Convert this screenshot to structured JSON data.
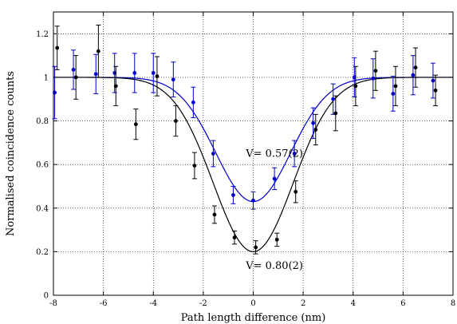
{
  "chart_data": {
    "type": "scatter",
    "title": "",
    "xlabel": "Path length difference (nm)",
    "ylabel": "Normalised coincidence counts",
    "xlim": [
      -8,
      8
    ],
    "ylim": [
      0,
      1.3
    ],
    "xticks": [
      -8,
      -6,
      -4,
      -2,
      0,
      2,
      4,
      6,
      8
    ],
    "yticks": [
      0,
      0.2,
      0.4,
      0.6,
      0.8,
      1,
      1.2
    ],
    "yticklabels": [
      "0",
      "0.2",
      "0.4",
      "0.6",
      "0.8",
      "1",
      "1.2"
    ],
    "grid": true,
    "series": [
      {
        "color": "#0000cc",
        "points": [
          {
            "x": -7.95,
            "y": 0.93,
            "err": 0.12
          },
          {
            "x": -7.2,
            "y": 1.035,
            "err": 0.09
          },
          {
            "x": -6.3,
            "y": 1.015,
            "err": 0.09
          },
          {
            "x": -5.55,
            "y": 1.02,
            "err": 0.09
          },
          {
            "x": -4.75,
            "y": 1.02,
            "err": 0.09
          },
          {
            "x": -4.0,
            "y": 1.02,
            "err": 0.09
          },
          {
            "x": -3.2,
            "y": 0.99,
            "err": 0.08
          },
          {
            "x": -2.4,
            "y": 0.885,
            "err": 0.07
          },
          {
            "x": -1.6,
            "y": 0.65,
            "err": 0.06
          },
          {
            "x": -0.8,
            "y": 0.46,
            "err": 0.04
          },
          {
            "x": 0.0,
            "y": 0.435,
            "err": 0.04
          },
          {
            "x": 0.85,
            "y": 0.535,
            "err": 0.05
          },
          {
            "x": 1.65,
            "y": 0.65,
            "err": 0.06
          },
          {
            "x": 2.4,
            "y": 0.79,
            "err": 0.07
          },
          {
            "x": 3.2,
            "y": 0.9,
            "err": 0.07
          },
          {
            "x": 4.05,
            "y": 1.0,
            "err": 0.09
          },
          {
            "x": 4.8,
            "y": 0.995,
            "err": 0.09
          },
          {
            "x": 5.6,
            "y": 0.925,
            "err": 0.08
          },
          {
            "x": 6.4,
            "y": 1.01,
            "err": 0.09
          },
          {
            "x": 7.2,
            "y": 0.985,
            "err": 0.08
          }
        ],
        "fit": {
          "baseline": 1.0,
          "depth": 0.57,
          "center": 0.0,
          "sigma": 1.5
        },
        "annotation": {
          "text": "V= 0.57(2)",
          "x": 0.85,
          "y": 0.635
        }
      },
      {
        "color": "#000000",
        "points": [
          {
            "x": -7.85,
            "y": 1.135,
            "err": 0.1
          },
          {
            "x": -7.1,
            "y": 1.0,
            "err": 0.1
          },
          {
            "x": -6.2,
            "y": 1.12,
            "err": 0.12
          },
          {
            "x": -5.5,
            "y": 0.96,
            "err": 0.09
          },
          {
            "x": -4.7,
            "y": 0.785,
            "err": 0.07
          },
          {
            "x": -3.85,
            "y": 1.005,
            "err": 0.09
          },
          {
            "x": -3.1,
            "y": 0.8,
            "err": 0.07
          },
          {
            "x": -2.35,
            "y": 0.595,
            "err": 0.06
          },
          {
            "x": -1.55,
            "y": 0.37,
            "err": 0.04
          },
          {
            "x": -0.75,
            "y": 0.265,
            "err": 0.03
          },
          {
            "x": 0.1,
            "y": 0.22,
            "err": 0.03
          },
          {
            "x": 0.95,
            "y": 0.255,
            "err": 0.03
          },
          {
            "x": 1.7,
            "y": 0.475,
            "err": 0.05
          },
          {
            "x": 2.5,
            "y": 0.76,
            "err": 0.07
          },
          {
            "x": 3.3,
            "y": 0.835,
            "err": 0.08
          },
          {
            "x": 4.1,
            "y": 0.96,
            "err": 0.09
          },
          {
            "x": 4.9,
            "y": 1.03,
            "err": 0.09
          },
          {
            "x": 5.7,
            "y": 0.96,
            "err": 0.09
          },
          {
            "x": 6.5,
            "y": 1.045,
            "err": 0.09
          },
          {
            "x": 7.3,
            "y": 0.94,
            "err": 0.07
          }
        ],
        "fit": {
          "baseline": 1.0,
          "depth": 0.8,
          "center": 0.0,
          "sigma": 1.6
        },
        "annotation": {
          "text": "V= 0.80(2)",
          "x": 0.85,
          "y": 0.12
        }
      }
    ]
  }
}
